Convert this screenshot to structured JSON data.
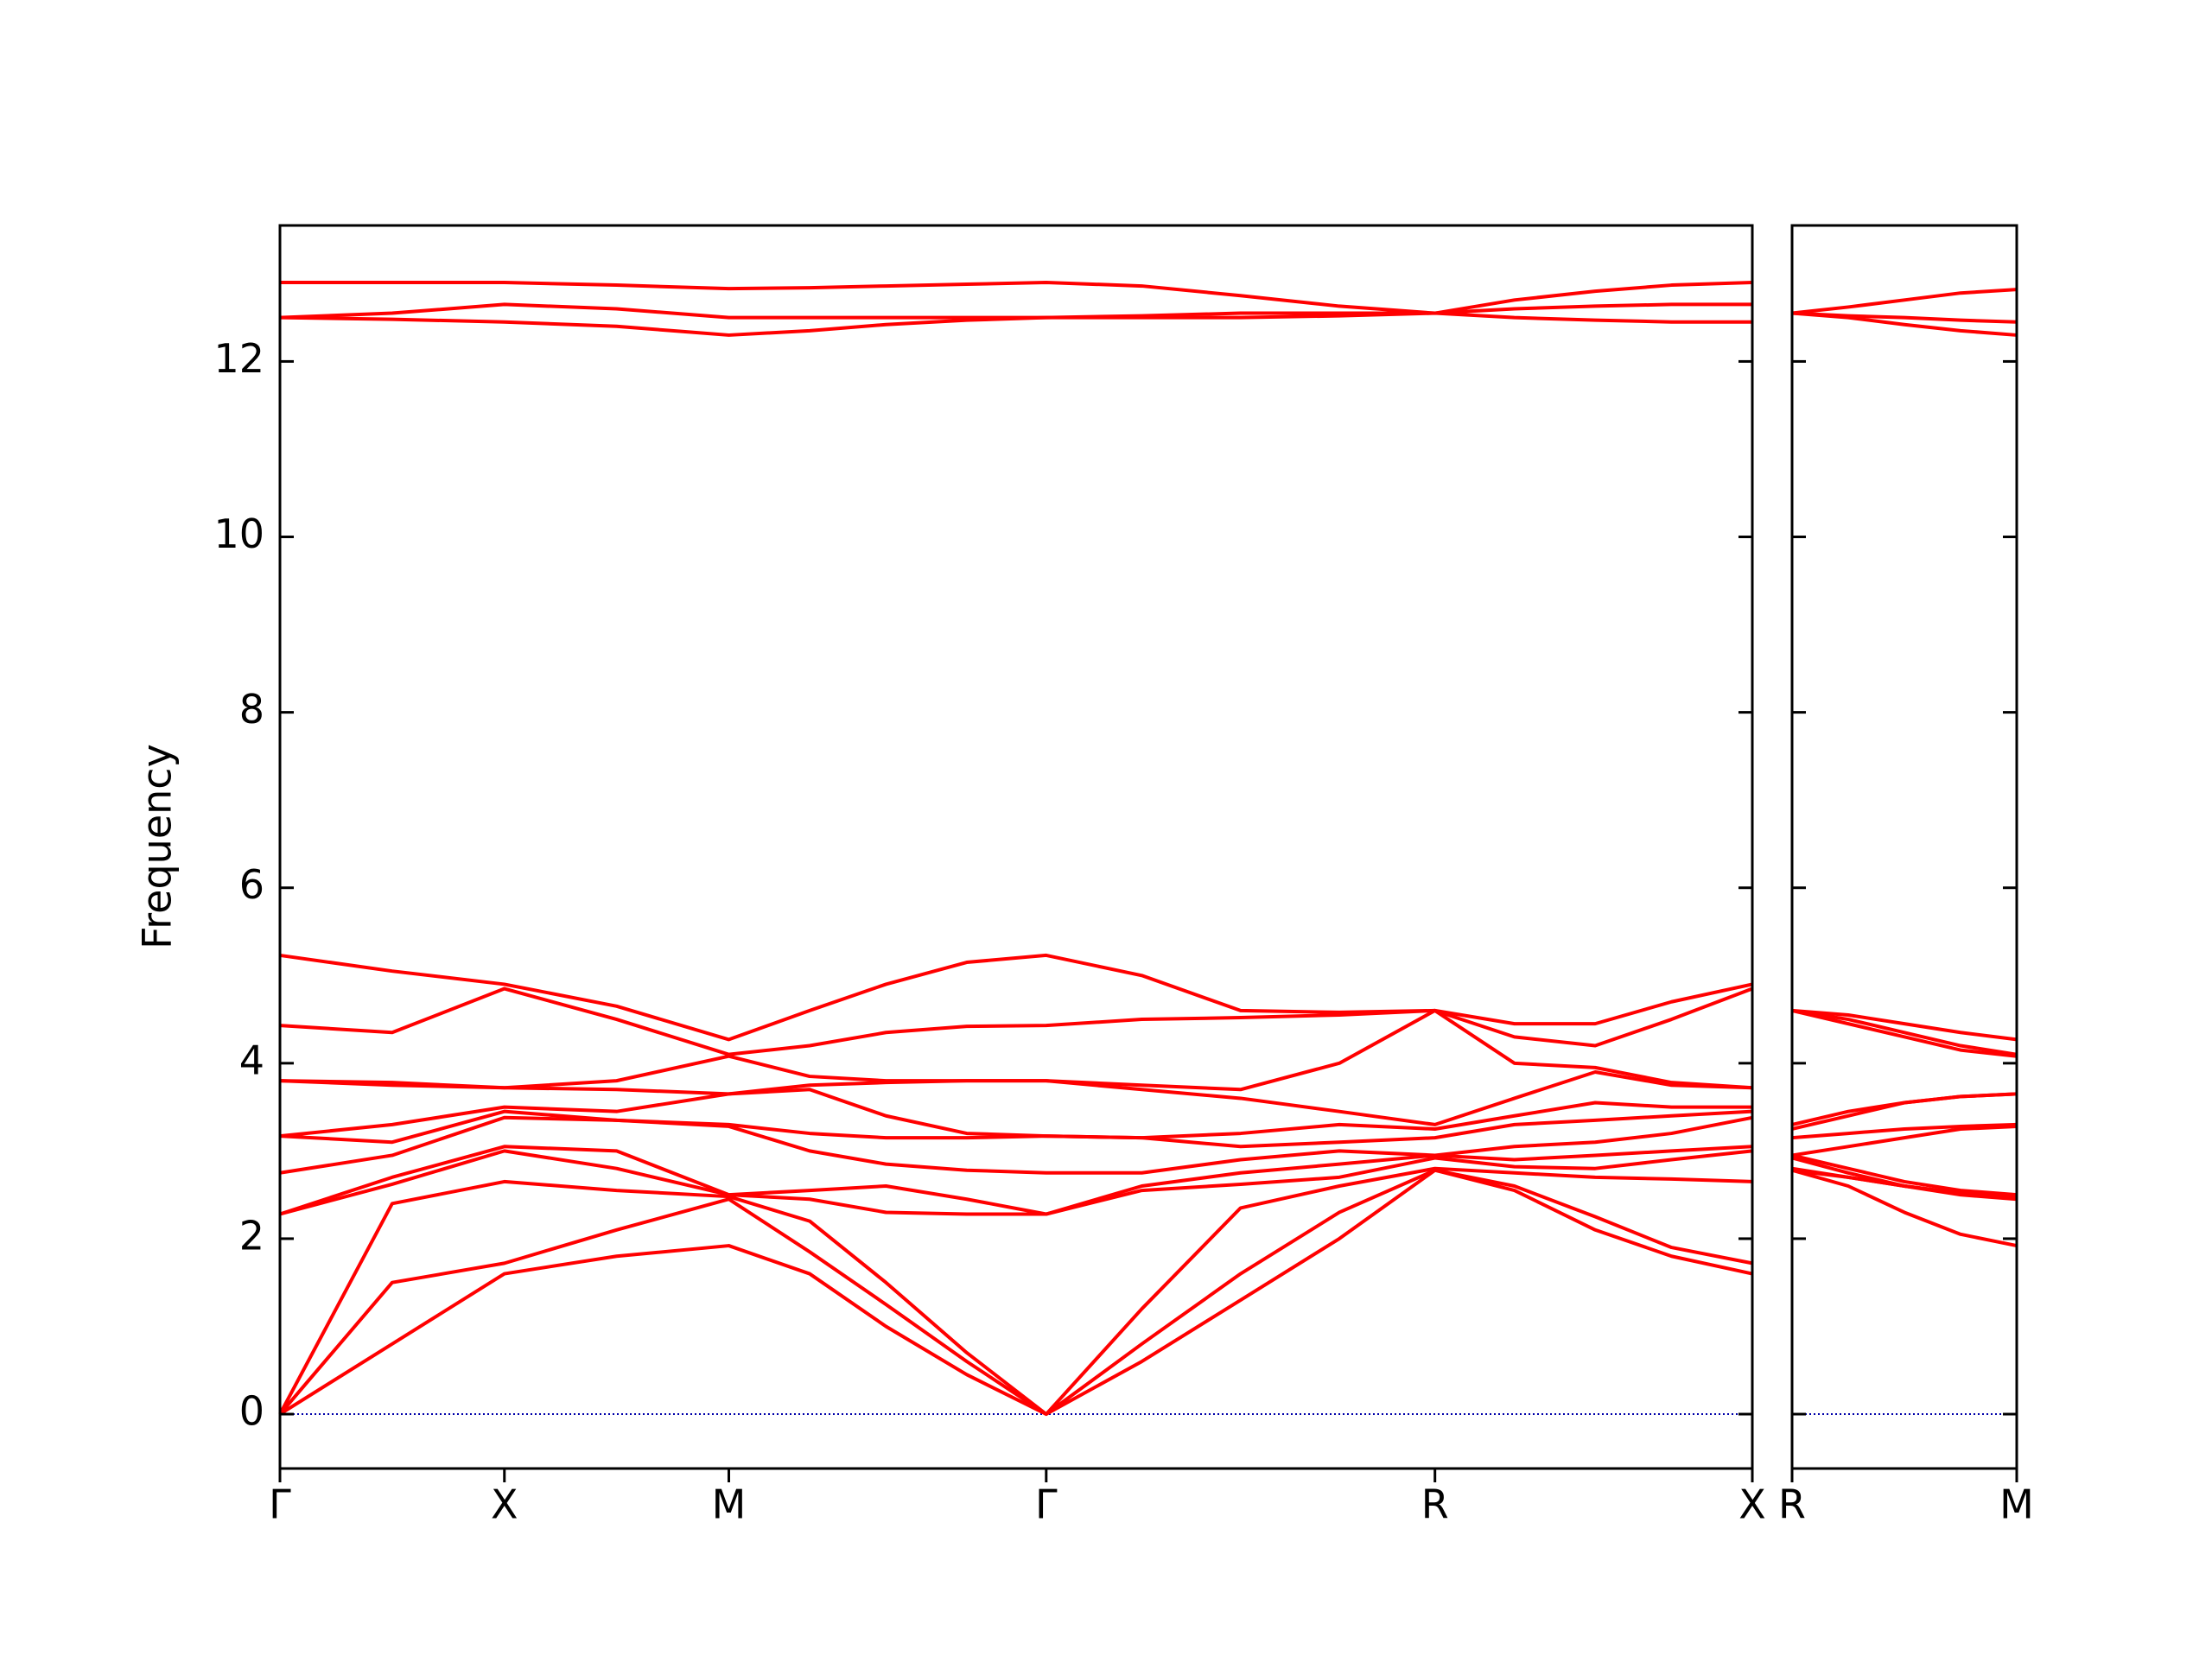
{
  "chart_data": [
    {
      "type": "line",
      "ylabel": "Frequency",
      "color": "#ff0000",
      "xlim": [
        0,
        3.28
      ],
      "ylim": [
        -0.62,
        13.55
      ],
      "xticks": [
        {
          "value": 0,
          "label": "Γ"
        },
        {
          "value": 0.5,
          "label": "X"
        },
        {
          "value": 1.0,
          "label": "M"
        },
        {
          "value": 1.707,
          "label": "Γ"
        },
        {
          "value": 2.573,
          "label": "R"
        },
        {
          "value": 3.28,
          "label": "X"
        }
      ],
      "yticks": [
        0,
        2,
        4,
        6,
        8,
        10,
        12
      ],
      "ytick_labels": true,
      "hline": 0,
      "hline_color": "#0000aa",
      "x": [
        0,
        0.25,
        0.5,
        0.75,
        1.0,
        1.18,
        1.35,
        1.53,
        1.707,
        1.92,
        2.14,
        2.36,
        2.573,
        2.75,
        2.93,
        3.1,
        3.28
      ],
      "series": [
        {
          "values": [
            0,
            0.8,
            1.6,
            1.8,
            1.92,
            1.6,
            1.0,
            0.45,
            0,
            0.6,
            1.3,
            2.0,
            2.78,
            2.55,
            2.1,
            1.8,
            1.6
          ]
        },
        {
          "values": [
            0,
            1.5,
            1.72,
            2.1,
            2.45,
            1.85,
            1.25,
            0.6,
            0,
            0.8,
            1.6,
            2.3,
            2.78,
            2.6,
            2.25,
            1.9,
            1.72
          ]
        },
        {
          "values": [
            0,
            2.4,
            2.65,
            2.55,
            2.48,
            2.2,
            1.5,
            0.7,
            0,
            1.2,
            2.35,
            2.6,
            2.8,
            2.75,
            2.7,
            2.68,
            2.65
          ]
        },
        {
          "values": [
            2.28,
            2.62,
            3.0,
            2.8,
            2.5,
            2.45,
            2.3,
            2.28,
            2.28,
            2.55,
            2.62,
            2.7,
            2.92,
            2.82,
            2.8,
            2.9,
            3.0
          ]
        },
        {
          "values": [
            2.28,
            2.7,
            3.05,
            3.0,
            2.5,
            2.55,
            2.6,
            2.45,
            2.28,
            2.6,
            2.75,
            2.85,
            2.95,
            2.9,
            2.95,
            3.0,
            3.05
          ]
        },
        {
          "values": [
            2.75,
            2.95,
            3.38,
            3.35,
            3.28,
            3.0,
            2.85,
            2.78,
            2.75,
            2.75,
            2.9,
            3.0,
            2.95,
            3.05,
            3.1,
            3.2,
            3.38
          ]
        },
        {
          "values": [
            3.17,
            3.1,
            3.45,
            3.35,
            3.3,
            3.2,
            3.15,
            3.15,
            3.17,
            3.15,
            3.05,
            3.1,
            3.15,
            3.3,
            3.35,
            3.4,
            3.45
          ]
        },
        {
          "values": [
            3.17,
            3.3,
            3.5,
            3.45,
            3.65,
            3.7,
            3.4,
            3.2,
            3.17,
            3.15,
            3.2,
            3.3,
            3.25,
            3.4,
            3.55,
            3.5,
            3.5
          ]
        },
        {
          "values": [
            3.8,
            3.75,
            3.72,
            3.7,
            3.65,
            3.75,
            3.78,
            3.8,
            3.8,
            3.7,
            3.6,
            3.45,
            3.3,
            3.6,
            3.9,
            3.75,
            3.72
          ]
        },
        {
          "values": [
            3.8,
            3.78,
            3.72,
            3.8,
            4.08,
            3.85,
            3.8,
            3.8,
            3.8,
            3.75,
            3.7,
            4.0,
            4.6,
            4.0,
            3.95,
            3.78,
            3.72
          ]
        },
        {
          "values": [
            4.43,
            4.35,
            4.85,
            4.5,
            4.1,
            4.2,
            4.35,
            4.42,
            4.43,
            4.5,
            4.52,
            4.55,
            4.6,
            4.3,
            4.2,
            4.5,
            4.85
          ]
        },
        {
          "values": [
            5.23,
            5.05,
            4.9,
            4.65,
            4.27,
            4.6,
            4.9,
            5.15,
            5.23,
            5.0,
            4.6,
            4.58,
            4.6,
            4.45,
            4.45,
            4.7,
            4.9
          ]
        },
        {
          "values": [
            12.5,
            12.48,
            12.45,
            12.4,
            12.3,
            12.35,
            12.42,
            12.47,
            12.5,
            12.5,
            12.5,
            12.52,
            12.55,
            12.5,
            12.47,
            12.45,
            12.45
          ]
        },
        {
          "values": [
            12.5,
            12.55,
            12.65,
            12.6,
            12.5,
            12.5,
            12.5,
            12.5,
            12.5,
            12.52,
            12.55,
            12.55,
            12.55,
            12.6,
            12.63,
            12.65,
            12.65
          ]
        },
        {
          "values": [
            12.9,
            12.9,
            12.9,
            12.87,
            12.83,
            12.84,
            12.86,
            12.88,
            12.9,
            12.86,
            12.75,
            12.63,
            12.55,
            12.7,
            12.8,
            12.87,
            12.9
          ]
        }
      ]
    },
    {
      "type": "line",
      "color": "#ff0000",
      "xlim": [
        0,
        0.5
      ],
      "ylim": [
        -0.62,
        13.55
      ],
      "xticks": [
        {
          "value": 0,
          "label": "R"
        },
        {
          "value": 0.5,
          "label": "M"
        }
      ],
      "yticks": [
        0,
        2,
        4,
        6,
        8,
        10,
        12
      ],
      "ytick_labels": false,
      "hline": 0,
      "hline_color": "#0000aa",
      "x": [
        0,
        0.125,
        0.25,
        0.375,
        0.5
      ],
      "series": [
        {
          "values": [
            2.78,
            2.6,
            2.3,
            2.05,
            1.92
          ]
        },
        {
          "values": [
            2.78,
            2.7,
            2.6,
            2.5,
            2.45
          ]
        },
        {
          "values": [
            2.8,
            2.7,
            2.6,
            2.52,
            2.48
          ]
        },
        {
          "values": [
            2.92,
            2.75,
            2.6,
            2.52,
            2.5
          ]
        },
        {
          "values": [
            2.95,
            2.8,
            2.65,
            2.55,
            2.5
          ]
        },
        {
          "values": [
            2.95,
            3.05,
            3.15,
            3.25,
            3.28
          ]
        },
        {
          "values": [
            3.15,
            3.2,
            3.25,
            3.28,
            3.3
          ]
        },
        {
          "values": [
            3.25,
            3.4,
            3.55,
            3.62,
            3.65
          ]
        },
        {
          "values": [
            3.3,
            3.45,
            3.55,
            3.62,
            3.65
          ]
        },
        {
          "values": [
            4.6,
            4.45,
            4.3,
            4.15,
            4.08
          ]
        },
        {
          "values": [
            4.6,
            4.5,
            4.35,
            4.2,
            4.1
          ]
        },
        {
          "values": [
            4.6,
            4.55,
            4.45,
            4.35,
            4.27
          ]
        },
        {
          "values": [
            12.55,
            12.5,
            12.42,
            12.35,
            12.3
          ]
        },
        {
          "values": [
            12.55,
            12.52,
            12.5,
            12.47,
            12.45
          ]
        },
        {
          "values": [
            12.55,
            12.62,
            12.7,
            12.78,
            12.82
          ]
        }
      ]
    }
  ]
}
